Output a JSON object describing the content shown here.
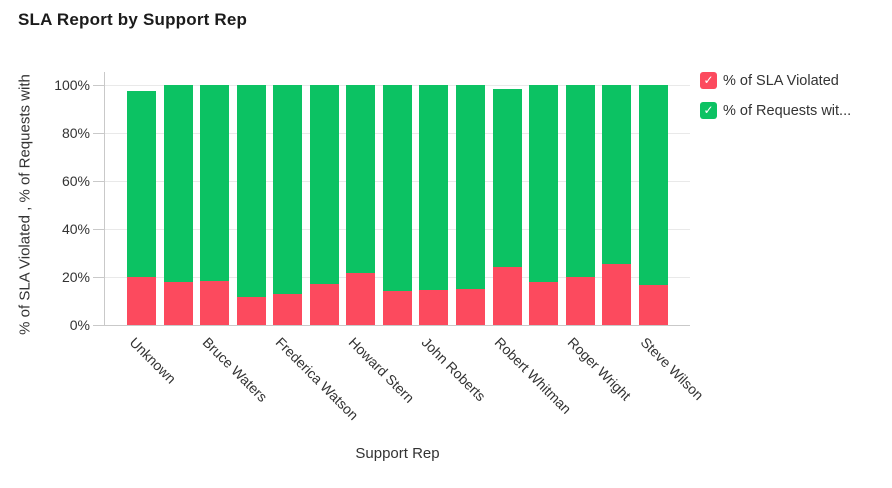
{
  "title": "SLA Report by Support Rep",
  "colors": {
    "violated": "#FC4A5E",
    "within": "#0CC263",
    "grid": "#e9e9e9",
    "axis": "#c9c9c9",
    "text": "#333333",
    "title_text": "#1b1b1b"
  },
  "chart_data": {
    "type": "bar",
    "stacked": true,
    "title": "SLA Report by Support Rep",
    "xlabel": "Support Rep",
    "ylabel": "% of SLA Violated , % of Requests with",
    "ylim": [
      0,
      100
    ],
    "yticks": [
      "0%",
      "20%",
      "40%",
      "60%",
      "80%",
      "100%"
    ],
    "grid": true,
    "legend_position": "top-right",
    "categories": [
      "Unknown",
      "",
      "Bruce Waters",
      "",
      "Frederica Watson",
      "",
      "Howard Stern",
      "",
      "John Roberts",
      "",
      "Robert Whitman",
      "",
      "Roger Wright",
      "",
      "Steve Wilson"
    ],
    "series": [
      {
        "name": "% of SLA Violated",
        "color": "#FC4A5E",
        "values": [
          20,
          18,
          18.5,
          11.5,
          13,
          17,
          21.5,
          14,
          14.5,
          15,
          24,
          18,
          20,
          25.5,
          16.5
        ]
      },
      {
        "name": "% of Requests wit...",
        "color": "#0CC263",
        "values": [
          77.5,
          82,
          81.5,
          88.5,
          87,
          83,
          78.5,
          86,
          85.5,
          85,
          74.5,
          82,
          80,
          74.5,
          83.5
        ]
      }
    ]
  },
  "legend": {
    "items": [
      {
        "label": "% of SLA Violated",
        "color": "#FC4A5E",
        "check_icon": "✓"
      },
      {
        "label": "% of Requests wit...",
        "color": "#0CC263",
        "check_icon": "✓"
      }
    ]
  }
}
